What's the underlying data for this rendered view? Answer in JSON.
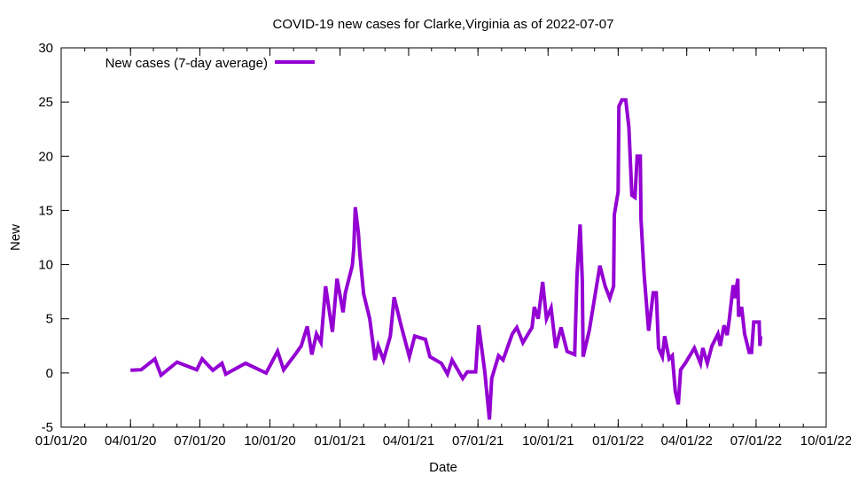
{
  "chart_data": {
    "type": "line",
    "title": "COVID-19 new cases for Clarke,Virginia as of 2022-07-07",
    "xlabel": "Date",
    "ylabel": "New",
    "xlim": [
      "2020-01-01",
      "2022-10-01"
    ],
    "ylim": [
      -5,
      30
    ],
    "x_tick_labels": [
      "01/01/20",
      "04/01/20",
      "07/01/20",
      "10/01/20",
      "01/01/21",
      "04/01/21",
      "07/01/21",
      "10/01/21",
      "01/01/22",
      "04/01/22",
      "07/01/22",
      "10/01/22"
    ],
    "x_tick_dates": [
      "2020-01-01",
      "2020-04-01",
      "2020-07-01",
      "2020-10-01",
      "2021-01-01",
      "2021-04-01",
      "2021-07-01",
      "2021-10-01",
      "2022-01-01",
      "2022-04-01",
      "2022-07-01",
      "2022-10-01"
    ],
    "y_ticks": [
      -5,
      0,
      5,
      10,
      15,
      20,
      25,
      30
    ],
    "grid": false,
    "legend_position": "top-left",
    "series": [
      {
        "name": "New cases (7-day average)",
        "color": "#9400d3",
        "points": [
          [
            "2020-04-01",
            0.25
          ],
          [
            "2020-04-15",
            0.3
          ],
          [
            "2020-05-03",
            1.3
          ],
          [
            "2020-05-11",
            -0.2
          ],
          [
            "2020-06-01",
            1.0
          ],
          [
            "2020-06-27",
            0.3
          ],
          [
            "2020-07-04",
            1.3
          ],
          [
            "2020-07-18",
            0.25
          ],
          [
            "2020-07-30",
            0.9
          ],
          [
            "2020-08-04",
            -0.1
          ],
          [
            "2020-08-30",
            0.9
          ],
          [
            "2020-09-26",
            0.0
          ],
          [
            "2020-10-11",
            2.0
          ],
          [
            "2020-10-19",
            0.3
          ],
          [
            "2020-11-03",
            1.7
          ],
          [
            "2020-11-11",
            2.5
          ],
          [
            "2020-11-19",
            4.3
          ],
          [
            "2020-11-25",
            1.7
          ],
          [
            "2020-12-01",
            3.6
          ],
          [
            "2020-12-07",
            2.8
          ],
          [
            "2020-12-13",
            8.0
          ],
          [
            "2020-12-22",
            3.8
          ],
          [
            "2020-12-28",
            8.7
          ],
          [
            "2021-01-05",
            5.6
          ],
          [
            "2021-01-08",
            7.4
          ],
          [
            "2021-01-17",
            9.9
          ],
          [
            "2021-01-19",
            11.5
          ],
          [
            "2021-01-21",
            15.3
          ],
          [
            "2021-01-25",
            13.0
          ],
          [
            "2021-01-27",
            11.0
          ],
          [
            "2021-02-01",
            7.3
          ],
          [
            "2021-02-09",
            5.0
          ],
          [
            "2021-02-16",
            1.2
          ],
          [
            "2021-02-20",
            2.5
          ],
          [
            "2021-02-27",
            1.2
          ],
          [
            "2021-03-08",
            3.4
          ],
          [
            "2021-03-13",
            7.0
          ],
          [
            "2021-03-22",
            4.4
          ],
          [
            "2021-04-02",
            1.5
          ],
          [
            "2021-04-09",
            3.4
          ],
          [
            "2021-04-23",
            3.1
          ],
          [
            "2021-04-29",
            1.5
          ],
          [
            "2021-05-14",
            0.9
          ],
          [
            "2021-05-22",
            -0.1
          ],
          [
            "2021-05-28",
            1.2
          ],
          [
            "2021-06-11",
            -0.5
          ],
          [
            "2021-06-17",
            0.1
          ],
          [
            "2021-06-28",
            0.1
          ],
          [
            "2021-07-02",
            4.4
          ],
          [
            "2021-07-10",
            0.1
          ],
          [
            "2021-07-16",
            -4.3
          ],
          [
            "2021-07-19",
            -0.5
          ],
          [
            "2021-07-28",
            1.6
          ],
          [
            "2021-08-03",
            1.2
          ],
          [
            "2021-08-15",
            3.6
          ],
          [
            "2021-08-21",
            4.2
          ],
          [
            "2021-08-29",
            2.8
          ],
          [
            "2021-09-10",
            4.2
          ],
          [
            "2021-09-13",
            6.1
          ],
          [
            "2021-09-18",
            5.0
          ],
          [
            "2021-09-24",
            8.4
          ],
          [
            "2021-09-29",
            5.0
          ],
          [
            "2021-10-05",
            6.0
          ],
          [
            "2021-10-11",
            2.3
          ],
          [
            "2021-10-18",
            4.2
          ],
          [
            "2021-10-26",
            2.0
          ],
          [
            "2021-11-05",
            1.7
          ],
          [
            "2021-11-08",
            9.0
          ],
          [
            "2021-11-12",
            13.7
          ],
          [
            "2021-11-15",
            8.5
          ],
          [
            "2021-11-16",
            1.5
          ],
          [
            "2021-11-24",
            3.9
          ],
          [
            "2021-12-08",
            9.9
          ],
          [
            "2021-12-15",
            8.0
          ],
          [
            "2021-12-21",
            6.9
          ],
          [
            "2021-12-26",
            8.0
          ],
          [
            "2021-12-27",
            14.6
          ],
          [
            "2022-01-01",
            16.7
          ],
          [
            "2022-01-02",
            24.6
          ],
          [
            "2022-01-06",
            25.2
          ],
          [
            "2022-01-11",
            25.2
          ],
          [
            "2022-01-15",
            22.7
          ],
          [
            "2022-01-19",
            16.4
          ],
          [
            "2022-01-23",
            16.2
          ],
          [
            "2022-01-26",
            20.0
          ],
          [
            "2022-01-30",
            20.0
          ],
          [
            "2022-01-31",
            14.2
          ],
          [
            "2022-02-04",
            9.1
          ],
          [
            "2022-02-10",
            3.9
          ],
          [
            "2022-02-16",
            7.4
          ],
          [
            "2022-02-20",
            7.4
          ],
          [
            "2022-02-23",
            2.3
          ],
          [
            "2022-02-28",
            1.5
          ],
          [
            "2022-03-03",
            3.4
          ],
          [
            "2022-03-09",
            1.3
          ],
          [
            "2022-03-13",
            1.6
          ],
          [
            "2022-03-17",
            -1.7
          ],
          [
            "2022-03-21",
            -2.9
          ],
          [
            "2022-03-24",
            0.3
          ],
          [
            "2022-03-30",
            0.9
          ],
          [
            "2022-04-11",
            2.3
          ],
          [
            "2022-04-19",
            0.9
          ],
          [
            "2022-04-22",
            2.3
          ],
          [
            "2022-04-28",
            0.9
          ],
          [
            "2022-05-04",
            2.5
          ],
          [
            "2022-05-12",
            3.6
          ],
          [
            "2022-05-15",
            2.5
          ],
          [
            "2022-05-20",
            4.4
          ],
          [
            "2022-05-24",
            3.5
          ],
          [
            "2022-05-27",
            5.0
          ],
          [
            "2022-06-01",
            8.1
          ],
          [
            "2022-06-03",
            6.9
          ],
          [
            "2022-06-07",
            8.7
          ],
          [
            "2022-06-08",
            5.2
          ],
          [
            "2022-06-12",
            6.1
          ],
          [
            "2022-06-16",
            3.6
          ],
          [
            "2022-06-22",
            1.9
          ],
          [
            "2022-06-25",
            1.9
          ],
          [
            "2022-06-28",
            4.7
          ],
          [
            "2022-07-05",
            4.7
          ],
          [
            "2022-07-06",
            2.5
          ],
          [
            "2022-07-07",
            3.4
          ]
        ]
      }
    ]
  }
}
